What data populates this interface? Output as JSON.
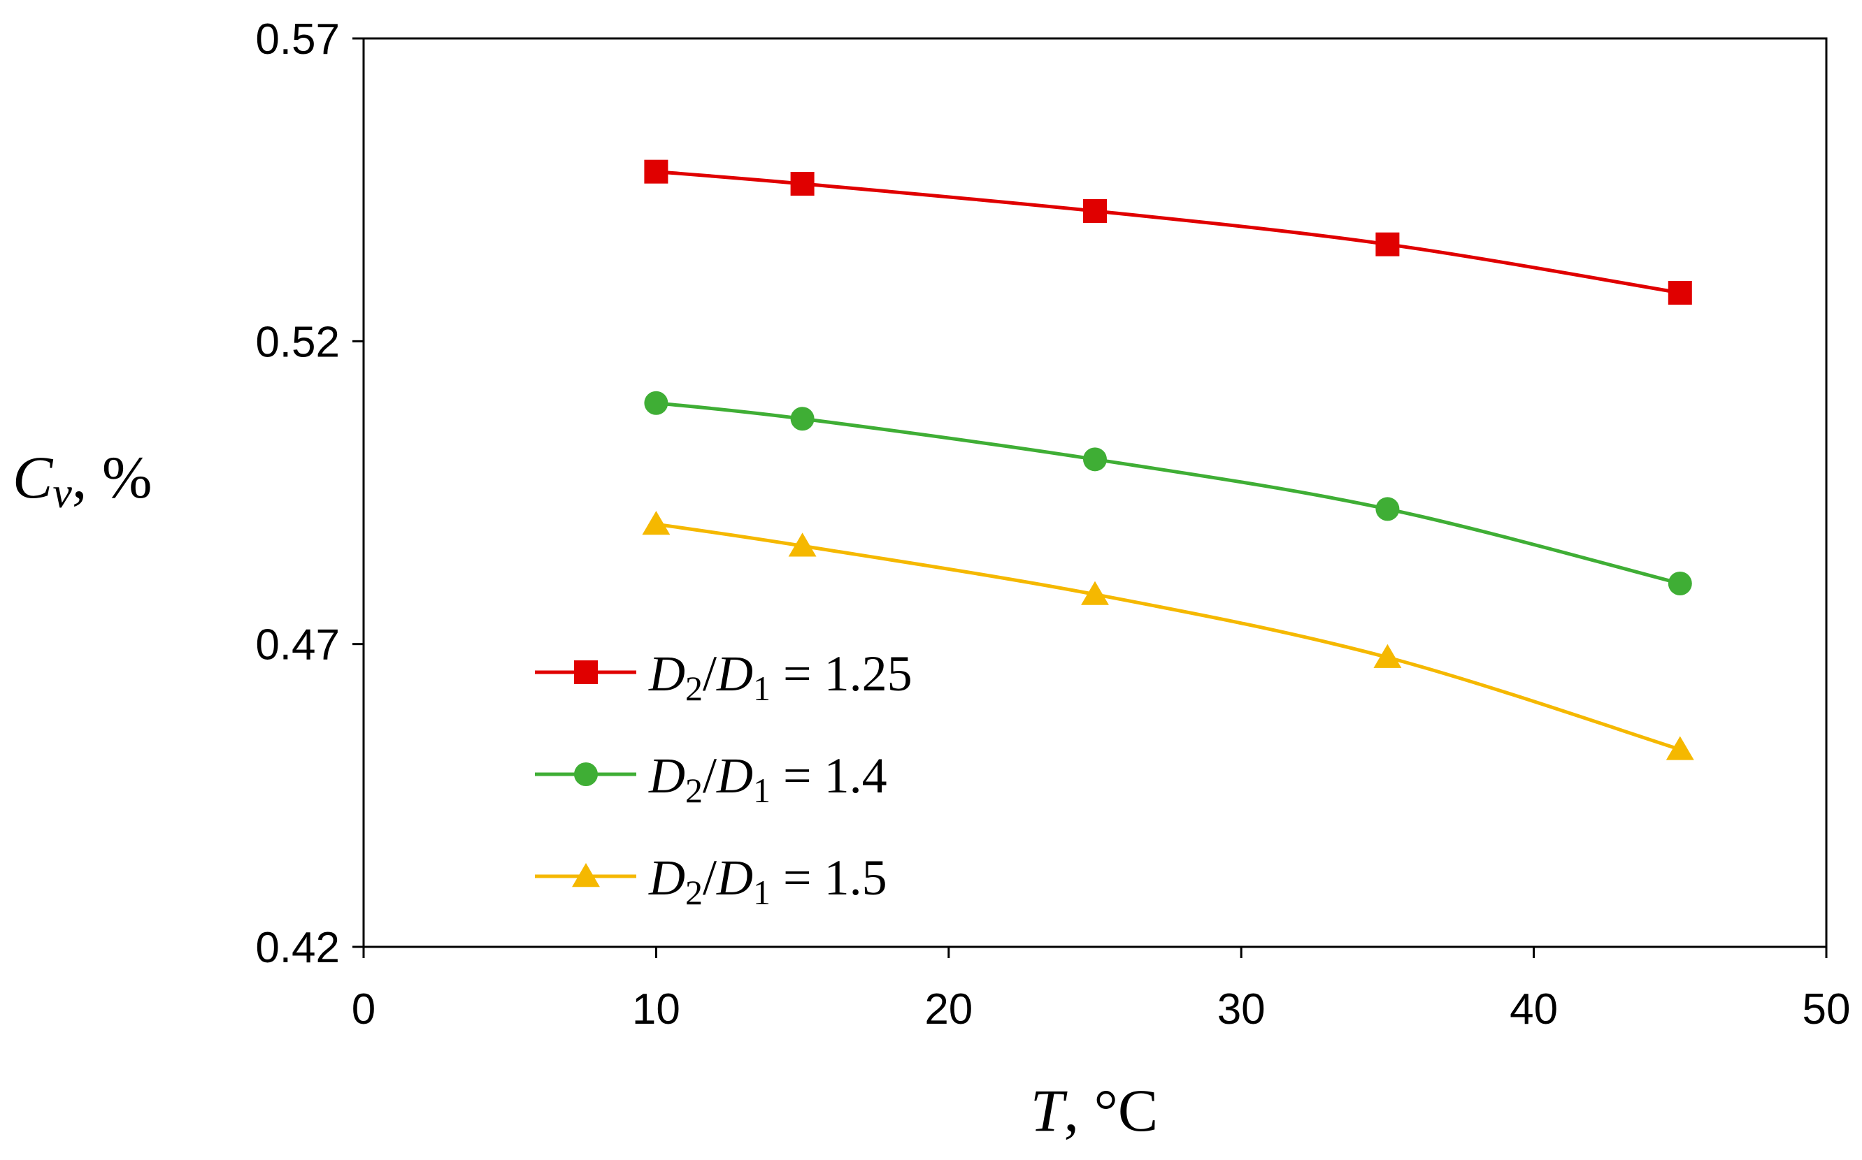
{
  "chart_data": {
    "type": "line",
    "title": "",
    "xlabel": "T, °C",
    "ylabel": "C_v, %",
    "xlabel_parts": {
      "symbol": "T",
      "rest": ", °C"
    },
    "ylabel_parts": {
      "symbol": "C",
      "subscript": "v",
      "rest": ", %"
    },
    "xlim": [
      0,
      50
    ],
    "ylim": [
      0.42,
      0.57
    ],
    "x_ticks": [
      0,
      10,
      20,
      30,
      40,
      50
    ],
    "x_tick_labels": [
      "0",
      "10",
      "20",
      "30",
      "40",
      "50"
    ],
    "y_ticks": [
      0.42,
      0.47,
      0.52,
      0.57
    ],
    "y_tick_labels": [
      "0.42",
      "0.47",
      "0.52",
      "0.57"
    ],
    "grid": false,
    "legend_position": "lower-left",
    "x": [
      10,
      15,
      25,
      35,
      45
    ],
    "series": [
      {
        "name": "D2/D1 = 1.25",
        "label_parts": {
          "a": "D",
          "a_sub": "2",
          "b": "D",
          "b_sub": "1",
          "value": "1.25"
        },
        "color": "#e00000",
        "marker": "square",
        "values": [
          0.548,
          0.546,
          0.5415,
          0.536,
          0.528
        ]
      },
      {
        "name": "D2/D1 = 1.4",
        "label_parts": {
          "a": "D",
          "a_sub": "2",
          "b": "D",
          "b_sub": "1",
          "value": "1.4"
        },
        "color": "#3fae35",
        "marker": "circle",
        "values": [
          0.5098,
          0.5072,
          0.5005,
          0.4923,
          0.48
        ]
      },
      {
        "name": "D2/D1 = 1.5",
        "label_parts": {
          "a": "D",
          "a_sub": "2",
          "b": "D",
          "b_sub": "1",
          "value": "1.5"
        },
        "color": "#f5b800",
        "marker": "triangle",
        "values": [
          0.4898,
          0.4862,
          0.4782,
          0.4678,
          0.4526
        ]
      }
    ]
  }
}
